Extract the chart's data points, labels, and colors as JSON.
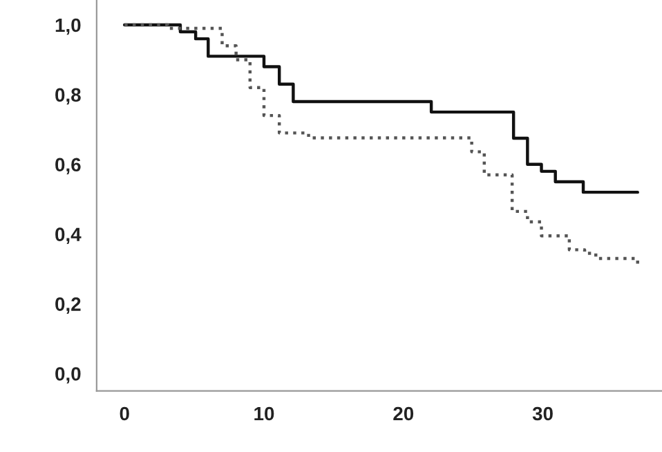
{
  "chart_data": {
    "type": "step",
    "series": [
      {
        "color": "#111111",
        "line_style": "solid",
        "x": [
          0,
          4.0,
          5.1,
          6.0,
          10.0,
          11.1,
          12.1,
          22.0,
          27.9,
          28.9,
          29.9,
          30.9,
          32.9,
          36.8
        ],
        "values": [
          1.0,
          0.98,
          0.96,
          0.91,
          0.88,
          0.83,
          0.78,
          0.75,
          0.675,
          0.6,
          0.58,
          0.55,
          0.52,
          0.52
        ]
      },
      {
        "color": "#555555",
        "line_style": "dotted",
        "x": [
          0,
          3.1,
          7.0,
          8.0,
          9.0,
          10.0,
          11.1,
          13.2,
          24.9,
          25.8,
          27.8,
          28.9,
          29.9,
          31.9,
          33.0,
          33.8,
          36.8,
          36.8
        ],
        "values": [
          1.0,
          0.99,
          0.94,
          0.9,
          0.82,
          0.74,
          0.69,
          0.676,
          0.636,
          0.57,
          0.465,
          0.435,
          0.395,
          0.355,
          0.345,
          0.33,
          0.33,
          0.305
        ]
      }
    ],
    "xlim": [
      -2,
      38.5
    ],
    "ylim": [
      -0.05,
      1.07
    ],
    "xticks": [
      0,
      10,
      20,
      30
    ],
    "yticks": [
      {
        "value": 0.0,
        "label": "0,0"
      },
      {
        "value": 0.2,
        "label": "0,2"
      },
      {
        "value": 0.4,
        "label": "0,4"
      },
      {
        "value": 0.6,
        "label": "0,6"
      },
      {
        "value": 0.8,
        "label": "0,8"
      },
      {
        "value": 1.0,
        "label": "1,0"
      }
    ],
    "grid": false,
    "legend": false
  }
}
